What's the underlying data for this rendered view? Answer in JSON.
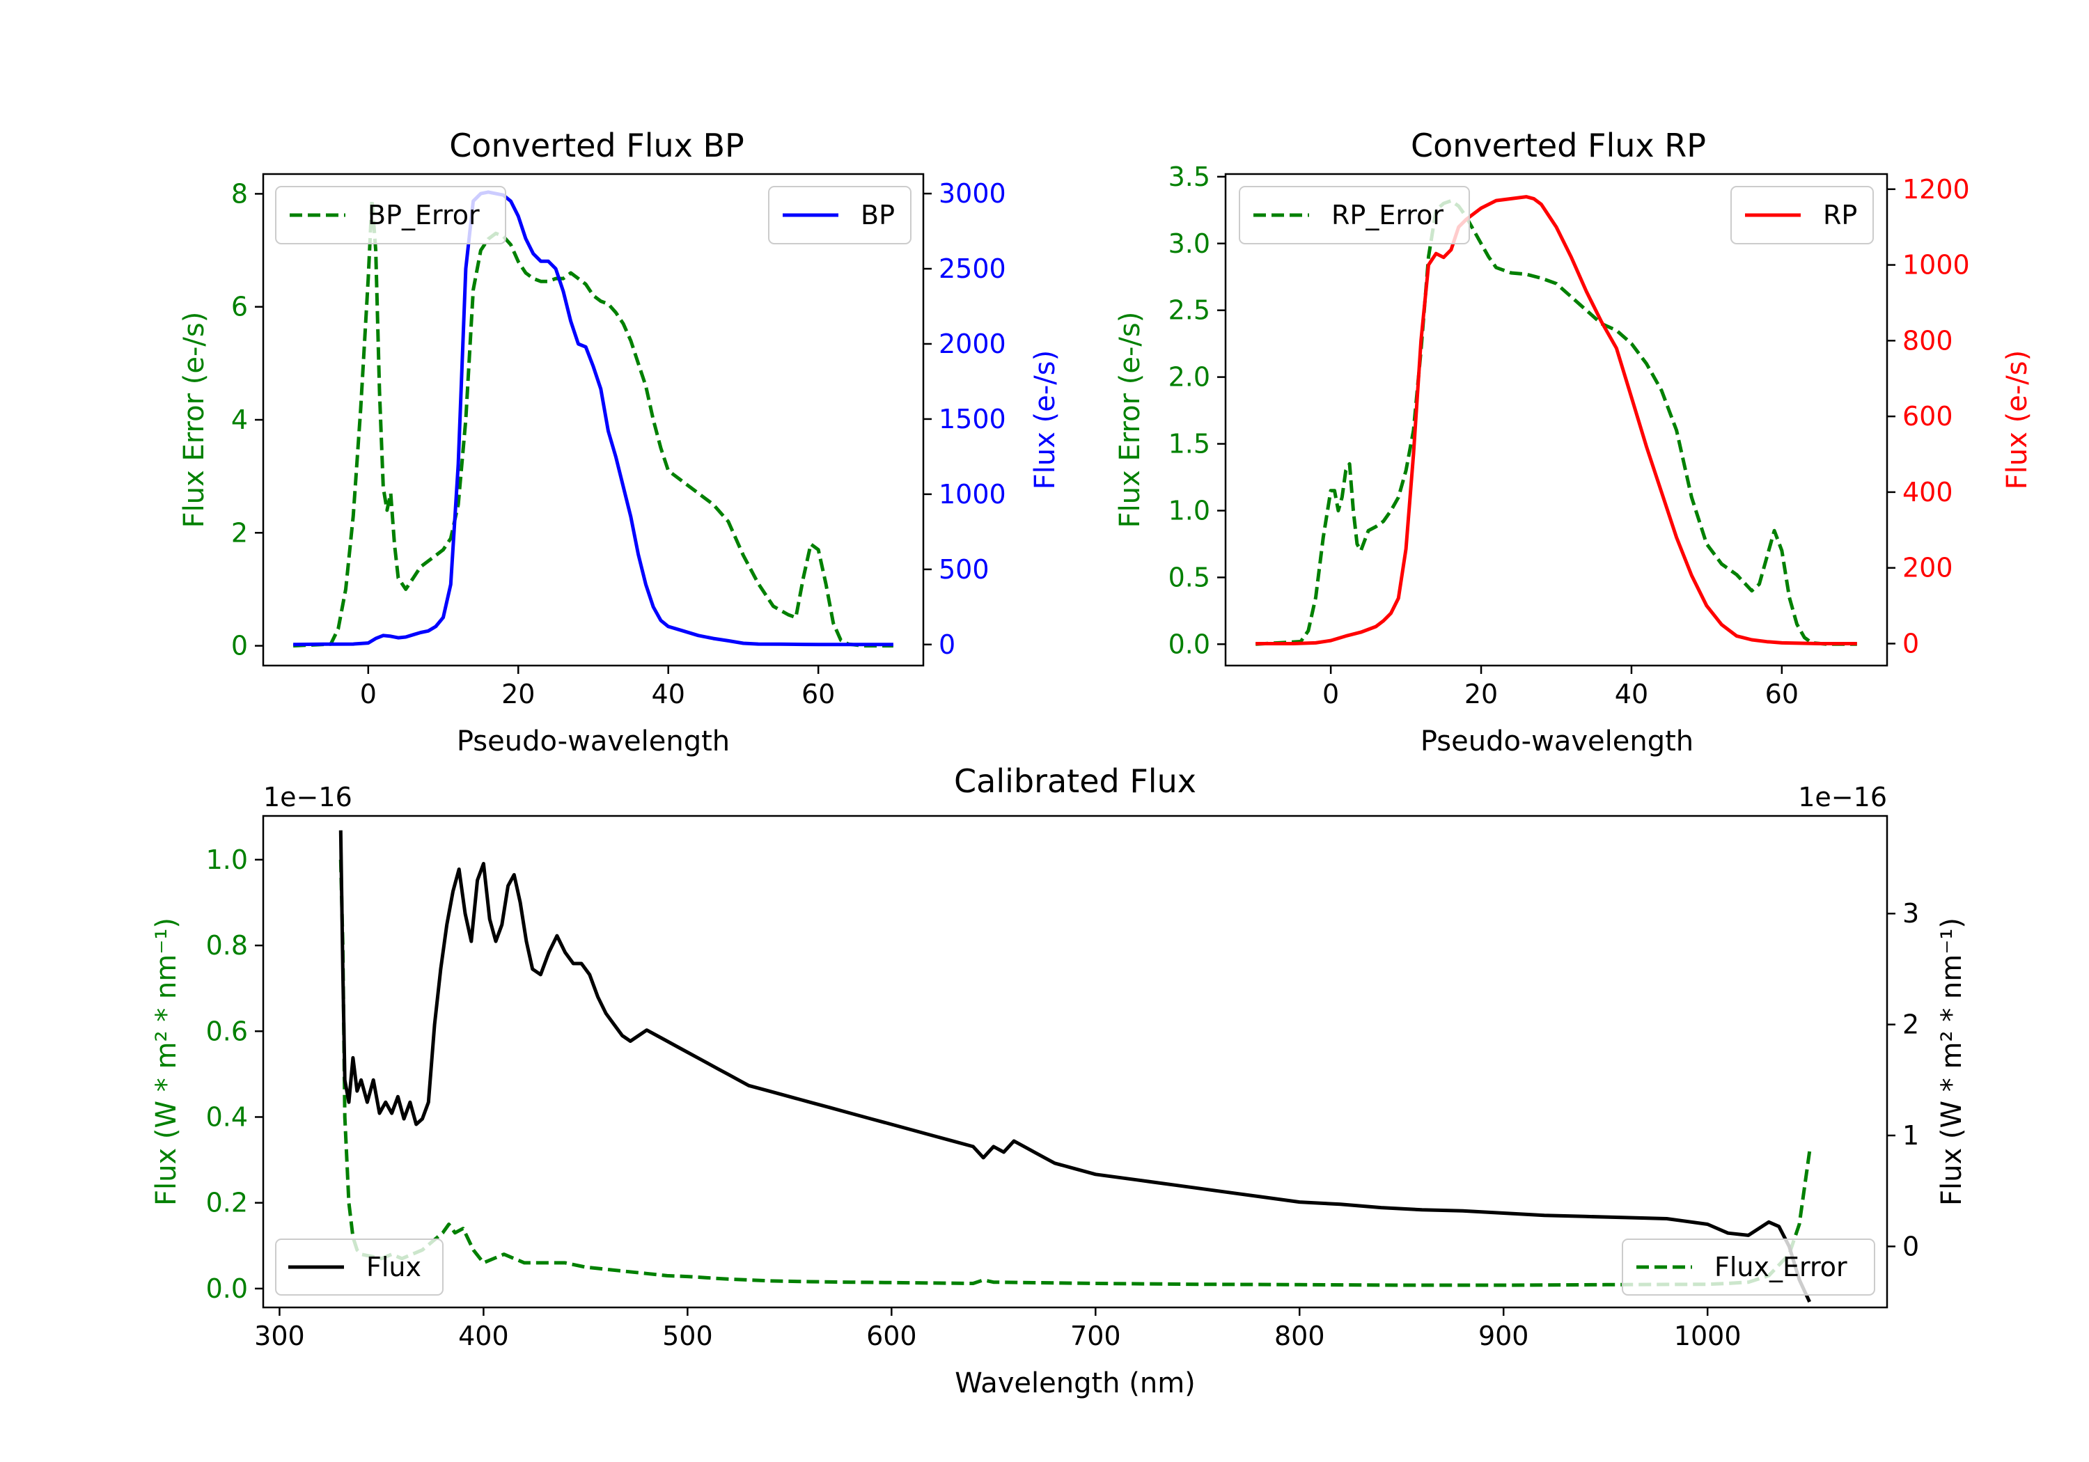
{
  "figure": {
    "colors": {
      "error": "#008000",
      "bp": "#0000ff",
      "rp": "#ff0000",
      "flux": "#000000"
    }
  },
  "chart_data": [
    {
      "id": "bp",
      "type": "line",
      "title": "Converted Flux BP",
      "xlabel": "Pseudo-wavelength",
      "ylabel_left": "Flux Error (e-/s)",
      "ylabel_right": "Flux (e-/s)",
      "xlim": [
        -14,
        74
      ],
      "ylim_left": [
        -0.35,
        8.35
      ],
      "ylim_right": [
        -140,
        3130
      ],
      "xticks": [
        {
          "v": 0,
          "label": "0"
        },
        {
          "v": 20,
          "label": "20"
        },
        {
          "v": 40,
          "label": "40"
        },
        {
          "v": 60,
          "label": "60"
        }
      ],
      "yticks_left": [
        {
          "v": 0,
          "label": "0"
        },
        {
          "v": 2,
          "label": "2"
        },
        {
          "v": 4,
          "label": "4"
        },
        {
          "v": 6,
          "label": "6"
        },
        {
          "v": 8,
          "label": "8"
        }
      ],
      "yticks_right": [
        {
          "v": 0,
          "label": "0"
        },
        {
          "v": 500,
          "label": "500"
        },
        {
          "v": 1000,
          "label": "1000"
        },
        {
          "v": 1500,
          "label": "1500"
        },
        {
          "v": 2000,
          "label": "2000"
        },
        {
          "v": 2500,
          "label": "2500"
        },
        {
          "v": 3000,
          "label": "3000"
        }
      ],
      "legend_left": "BP_Error",
      "legend_right": "BP",
      "series_left": {
        "name": "BP_Error",
        "color": "#008000",
        "style": "dashed",
        "x": [
          -10,
          -5,
          -4,
          -3,
          -2,
          -1,
          0,
          0.5,
          1,
          1.5,
          2,
          2.5,
          3,
          3.5,
          4,
          5,
          6,
          7,
          8,
          9,
          10,
          11,
          12,
          13,
          14,
          15,
          16,
          17,
          18,
          19,
          20,
          21,
          22,
          23,
          24,
          25,
          26,
          27,
          28,
          29,
          30,
          31,
          32,
          33,
          34,
          35,
          36,
          37,
          38,
          39,
          40,
          42,
          44,
          46,
          48,
          50,
          52,
          54,
          56,
          57,
          58,
          59,
          60,
          61,
          62,
          63,
          64,
          66,
          70
        ],
        "y": [
          0,
          0.03,
          0.3,
          1.0,
          2.3,
          4.2,
          6.5,
          7.9,
          7.0,
          4.5,
          2.8,
          2.4,
          2.7,
          1.8,
          1.2,
          1.0,
          1.2,
          1.4,
          1.5,
          1.6,
          1.7,
          1.9,
          2.5,
          4.0,
          6.3,
          7.0,
          7.2,
          7.3,
          7.25,
          7.1,
          6.8,
          6.6,
          6.5,
          6.45,
          6.45,
          6.5,
          6.5,
          6.6,
          6.5,
          6.4,
          6.2,
          6.1,
          6.05,
          5.9,
          5.7,
          5.4,
          5.0,
          4.6,
          4.0,
          3.5,
          3.1,
          2.9,
          2.7,
          2.5,
          2.2,
          1.6,
          1.1,
          0.7,
          0.55,
          0.5,
          1.2,
          1.8,
          1.7,
          1.1,
          0.4,
          0.1,
          0.03,
          0,
          0
        ]
      },
      "series_right": {
        "name": "BP",
        "color": "#0000ff",
        "style": "solid",
        "x": [
          -10,
          -6,
          -2,
          0,
          1,
          2,
          3,
          4,
          5,
          6,
          7,
          8,
          9,
          10,
          11,
          12,
          13,
          14,
          15,
          16,
          17,
          18,
          19,
          20,
          21,
          22,
          23,
          24,
          25,
          26,
          27,
          28,
          29,
          30,
          31,
          32,
          33,
          34,
          35,
          36,
          37,
          38,
          39,
          40,
          42,
          44,
          46,
          48,
          50,
          52,
          55,
          58,
          60,
          65,
          70
        ],
        "y": [
          0,
          2,
          3,
          10,
          40,
          60,
          55,
          45,
          50,
          65,
          80,
          90,
          120,
          180,
          400,
          1200,
          2500,
          2950,
          3000,
          3010,
          3000,
          2990,
          2950,
          2850,
          2700,
          2600,
          2550,
          2550,
          2500,
          2350,
          2150,
          2000,
          1980,
          1850,
          1700,
          1420,
          1250,
          1050,
          850,
          600,
          400,
          250,
          160,
          120,
          90,
          60,
          40,
          25,
          8,
          3,
          2,
          1,
          0,
          0,
          0
        ]
      }
    },
    {
      "id": "rp",
      "type": "line",
      "title": "Converted Flux RP",
      "xlabel": "Pseudo-wavelength",
      "ylabel_left": "Flux Error (e-/s)",
      "ylabel_right": "Flux (e-/s)",
      "xlim": [
        -14,
        74
      ],
      "ylim_left": [
        -0.16,
        3.52
      ],
      "ylim_right": [
        -58,
        1240
      ],
      "xticks": [
        {
          "v": 0,
          "label": "0"
        },
        {
          "v": 20,
          "label": "20"
        },
        {
          "v": 40,
          "label": "40"
        },
        {
          "v": 60,
          "label": "60"
        }
      ],
      "yticks_left": [
        {
          "v": 0,
          "label": "0.0"
        },
        {
          "v": 0.5,
          "label": "0.5"
        },
        {
          "v": 1.0,
          "label": "1.0"
        },
        {
          "v": 1.5,
          "label": "1.5"
        },
        {
          "v": 2.0,
          "label": "2.0"
        },
        {
          "v": 2.5,
          "label": "2.5"
        },
        {
          "v": 3.0,
          "label": "3.0"
        },
        {
          "v": 3.5,
          "label": "3.5"
        }
      ],
      "yticks_right": [
        {
          "v": 0,
          "label": "0"
        },
        {
          "v": 200,
          "label": "200"
        },
        {
          "v": 400,
          "label": "400"
        },
        {
          "v": 600,
          "label": "600"
        },
        {
          "v": 800,
          "label": "800"
        },
        {
          "v": 1000,
          "label": "1000"
        },
        {
          "v": 1200,
          "label": "1200"
        }
      ],
      "legend_left": "RP_Error",
      "legend_right": "RP",
      "series_left": {
        "name": "RP_Error",
        "color": "#008000",
        "style": "dashed",
        "x": [
          -10,
          -4,
          -3,
          -2,
          -1,
          0,
          0.5,
          1,
          1.5,
          2,
          2.5,
          3,
          3.5,
          4,
          5,
          6,
          7,
          8,
          9,
          10,
          11,
          12,
          13,
          14,
          15,
          16,
          17,
          18,
          19,
          20,
          21,
          22,
          24,
          26,
          28,
          30,
          32,
          34,
          36,
          38,
          40,
          42,
          44,
          46,
          48,
          50,
          52,
          54,
          56,
          57,
          58,
          59,
          60,
          61,
          62,
          63,
          64,
          66,
          70
        ],
        "y": [
          0,
          0.02,
          0.1,
          0.35,
          0.8,
          1.15,
          1.15,
          1.0,
          1.1,
          1.3,
          1.35,
          1.0,
          0.75,
          0.7,
          0.85,
          0.88,
          0.92,
          1.0,
          1.1,
          1.3,
          1.6,
          2.2,
          2.9,
          3.25,
          3.3,
          3.32,
          3.28,
          3.2,
          3.1,
          3.0,
          2.9,
          2.82,
          2.78,
          2.77,
          2.74,
          2.7,
          2.6,
          2.5,
          2.4,
          2.35,
          2.25,
          2.1,
          1.9,
          1.6,
          1.1,
          0.75,
          0.6,
          0.52,
          0.4,
          0.45,
          0.65,
          0.85,
          0.7,
          0.35,
          0.15,
          0.05,
          0.01,
          0,
          0
        ]
      },
      "series_right": {
        "name": "RP",
        "color": "#ff0000",
        "style": "solid",
        "x": [
          -10,
          -5,
          -2,
          0,
          2,
          4,
          6,
          7,
          8,
          9,
          10,
          11,
          12,
          13,
          14,
          15,
          16,
          17,
          18,
          20,
          22,
          24,
          26,
          27,
          28,
          30,
          32,
          34,
          36,
          38,
          40,
          42,
          44,
          46,
          48,
          50,
          52,
          54,
          56,
          58,
          60,
          65,
          70
        ],
        "y": [
          0,
          0,
          2,
          8,
          20,
          30,
          45,
          60,
          80,
          120,
          250,
          500,
          800,
          1000,
          1030,
          1020,
          1040,
          1100,
          1120,
          1150,
          1170,
          1175,
          1180,
          1175,
          1160,
          1100,
          1020,
          930,
          850,
          780,
          650,
          520,
          400,
          280,
          180,
          100,
          50,
          20,
          10,
          5,
          2,
          0,
          0
        ]
      }
    },
    {
      "id": "calibrated",
      "type": "line",
      "title": "Calibrated Flux",
      "xlabel": "Wavelength (nm)",
      "ylabel_left": "Flux (W * m² * nm⁻¹)",
      "ylabel_right": "Flux (W * m² * nm⁻¹)",
      "offset_left": "1e−16",
      "offset_right": "1e−16",
      "xlim": [
        292,
        1088
      ],
      "ylim_left": [
        -0.044,
        1.102
      ],
      "ylim_right": [
        -0.55,
        3.88
      ],
      "xticks": [
        {
          "v": 300,
          "label": "300"
        },
        {
          "v": 400,
          "label": "400"
        },
        {
          "v": 500,
          "label": "500"
        },
        {
          "v": 600,
          "label": "600"
        },
        {
          "v": 700,
          "label": "700"
        },
        {
          "v": 800,
          "label": "800"
        },
        {
          "v": 900,
          "label": "900"
        },
        {
          "v": 1000,
          "label": "1000"
        }
      ],
      "yticks_left": [
        {
          "v": 0,
          "label": "0.0"
        },
        {
          "v": 0.2,
          "label": "0.2"
        },
        {
          "v": 0.4,
          "label": "0.4"
        },
        {
          "v": 0.6,
          "label": "0.6"
        },
        {
          "v": 0.8,
          "label": "0.8"
        },
        {
          "v": 1.0,
          "label": "1.0"
        }
      ],
      "yticks_right": [
        {
          "v": 0,
          "label": "0"
        },
        {
          "v": 1,
          "label": "1"
        },
        {
          "v": 2,
          "label": "2"
        },
        {
          "v": 3,
          "label": "3"
        }
      ],
      "legend_left": "Flux",
      "legend_right": "Flux_Error",
      "series_right": {
        "name": "Flux",
        "color": "#000000",
        "style": "solid",
        "x": [
          330,
          331,
          332,
          334,
          336,
          338,
          340,
          343,
          346,
          349,
          352,
          355,
          358,
          361,
          364,
          367,
          370,
          373,
          376,
          379,
          382,
          385,
          388,
          391,
          394,
          397,
          400,
          403,
          406,
          409,
          412,
          415,
          418,
          421,
          424,
          428,
          432,
          436,
          440,
          444,
          448,
          452,
          456,
          460,
          464,
          468,
          472,
          476,
          480,
          485,
          490,
          495,
          500,
          505,
          510,
          515,
          520,
          525,
          530,
          540,
          550,
          560,
          570,
          580,
          590,
          600,
          610,
          620,
          630,
          640,
          645,
          650,
          655,
          660,
          665,
          670,
          675,
          680,
          690,
          700,
          720,
          740,
          760,
          780,
          800,
          820,
          840,
          860,
          880,
          900,
          920,
          940,
          960,
          980,
          1000,
          1010,
          1020,
          1030,
          1035,
          1040,
          1045,
          1050
        ],
        "y": [
          3.75,
          2.5,
          1.5,
          1.3,
          1.7,
          1.4,
          1.5,
          1.3,
          1.5,
          1.2,
          1.3,
          1.2,
          1.35,
          1.15,
          1.3,
          1.1,
          1.15,
          1.3,
          2.0,
          2.5,
          2.9,
          3.2,
          3.4,
          3.0,
          2.75,
          3.3,
          3.45,
          2.95,
          2.75,
          2.9,
          3.25,
          3.35,
          3.1,
          2.75,
          2.5,
          2.45,
          2.65,
          2.8,
          2.65,
          2.55,
          2.55,
          2.45,
          2.25,
          2.1,
          2.0,
          1.9,
          1.85,
          1.9,
          1.95,
          1.9,
          1.85,
          1.8,
          1.75,
          1.7,
          1.65,
          1.6,
          1.55,
          1.5,
          1.45,
          1.4,
          1.35,
          1.3,
          1.25,
          1.2,
          1.15,
          1.1,
          1.05,
          1.0,
          0.95,
          0.9,
          0.8,
          0.9,
          0.85,
          0.95,
          0.9,
          0.85,
          0.8,
          0.75,
          0.7,
          0.65,
          0.6,
          0.55,
          0.5,
          0.45,
          0.4,
          0.38,
          0.35,
          0.33,
          0.32,
          0.3,
          0.28,
          0.27,
          0.26,
          0.25,
          0.2,
          0.12,
          0.1,
          0.22,
          0.18,
          0.0,
          -0.3,
          -0.5
        ]
      },
      "series_left": {
        "name": "Flux_Error",
        "color": "#008000",
        "style": "dashed",
        "x": [
          330,
          331,
          332,
          334,
          336,
          338,
          340,
          345,
          350,
          355,
          360,
          365,
          370,
          375,
          380,
          383,
          386,
          390,
          395,
          400,
          410,
          420,
          430,
          440,
          450,
          460,
          470,
          480,
          490,
          500,
          520,
          540,
          560,
          580,
          600,
          620,
          640,
          645,
          650,
          700,
          750,
          800,
          850,
          900,
          950,
          1000,
          1010,
          1020,
          1030,
          1040,
          1045,
          1050
        ],
        "y": [
          1.0,
          0.8,
          0.4,
          0.2,
          0.12,
          0.09,
          0.08,
          0.075,
          0.07,
          0.08,
          0.07,
          0.08,
          0.09,
          0.11,
          0.13,
          0.15,
          0.13,
          0.14,
          0.09,
          0.06,
          0.08,
          0.06,
          0.06,
          0.06,
          0.05,
          0.045,
          0.04,
          0.035,
          0.03,
          0.028,
          0.022,
          0.018,
          0.016,
          0.015,
          0.014,
          0.013,
          0.012,
          0.02,
          0.015,
          0.012,
          0.01,
          0.009,
          0.008,
          0.008,
          0.009,
          0.01,
          0.012,
          0.015,
          0.03,
          0.08,
          0.15,
          0.32
        ]
      }
    }
  ]
}
